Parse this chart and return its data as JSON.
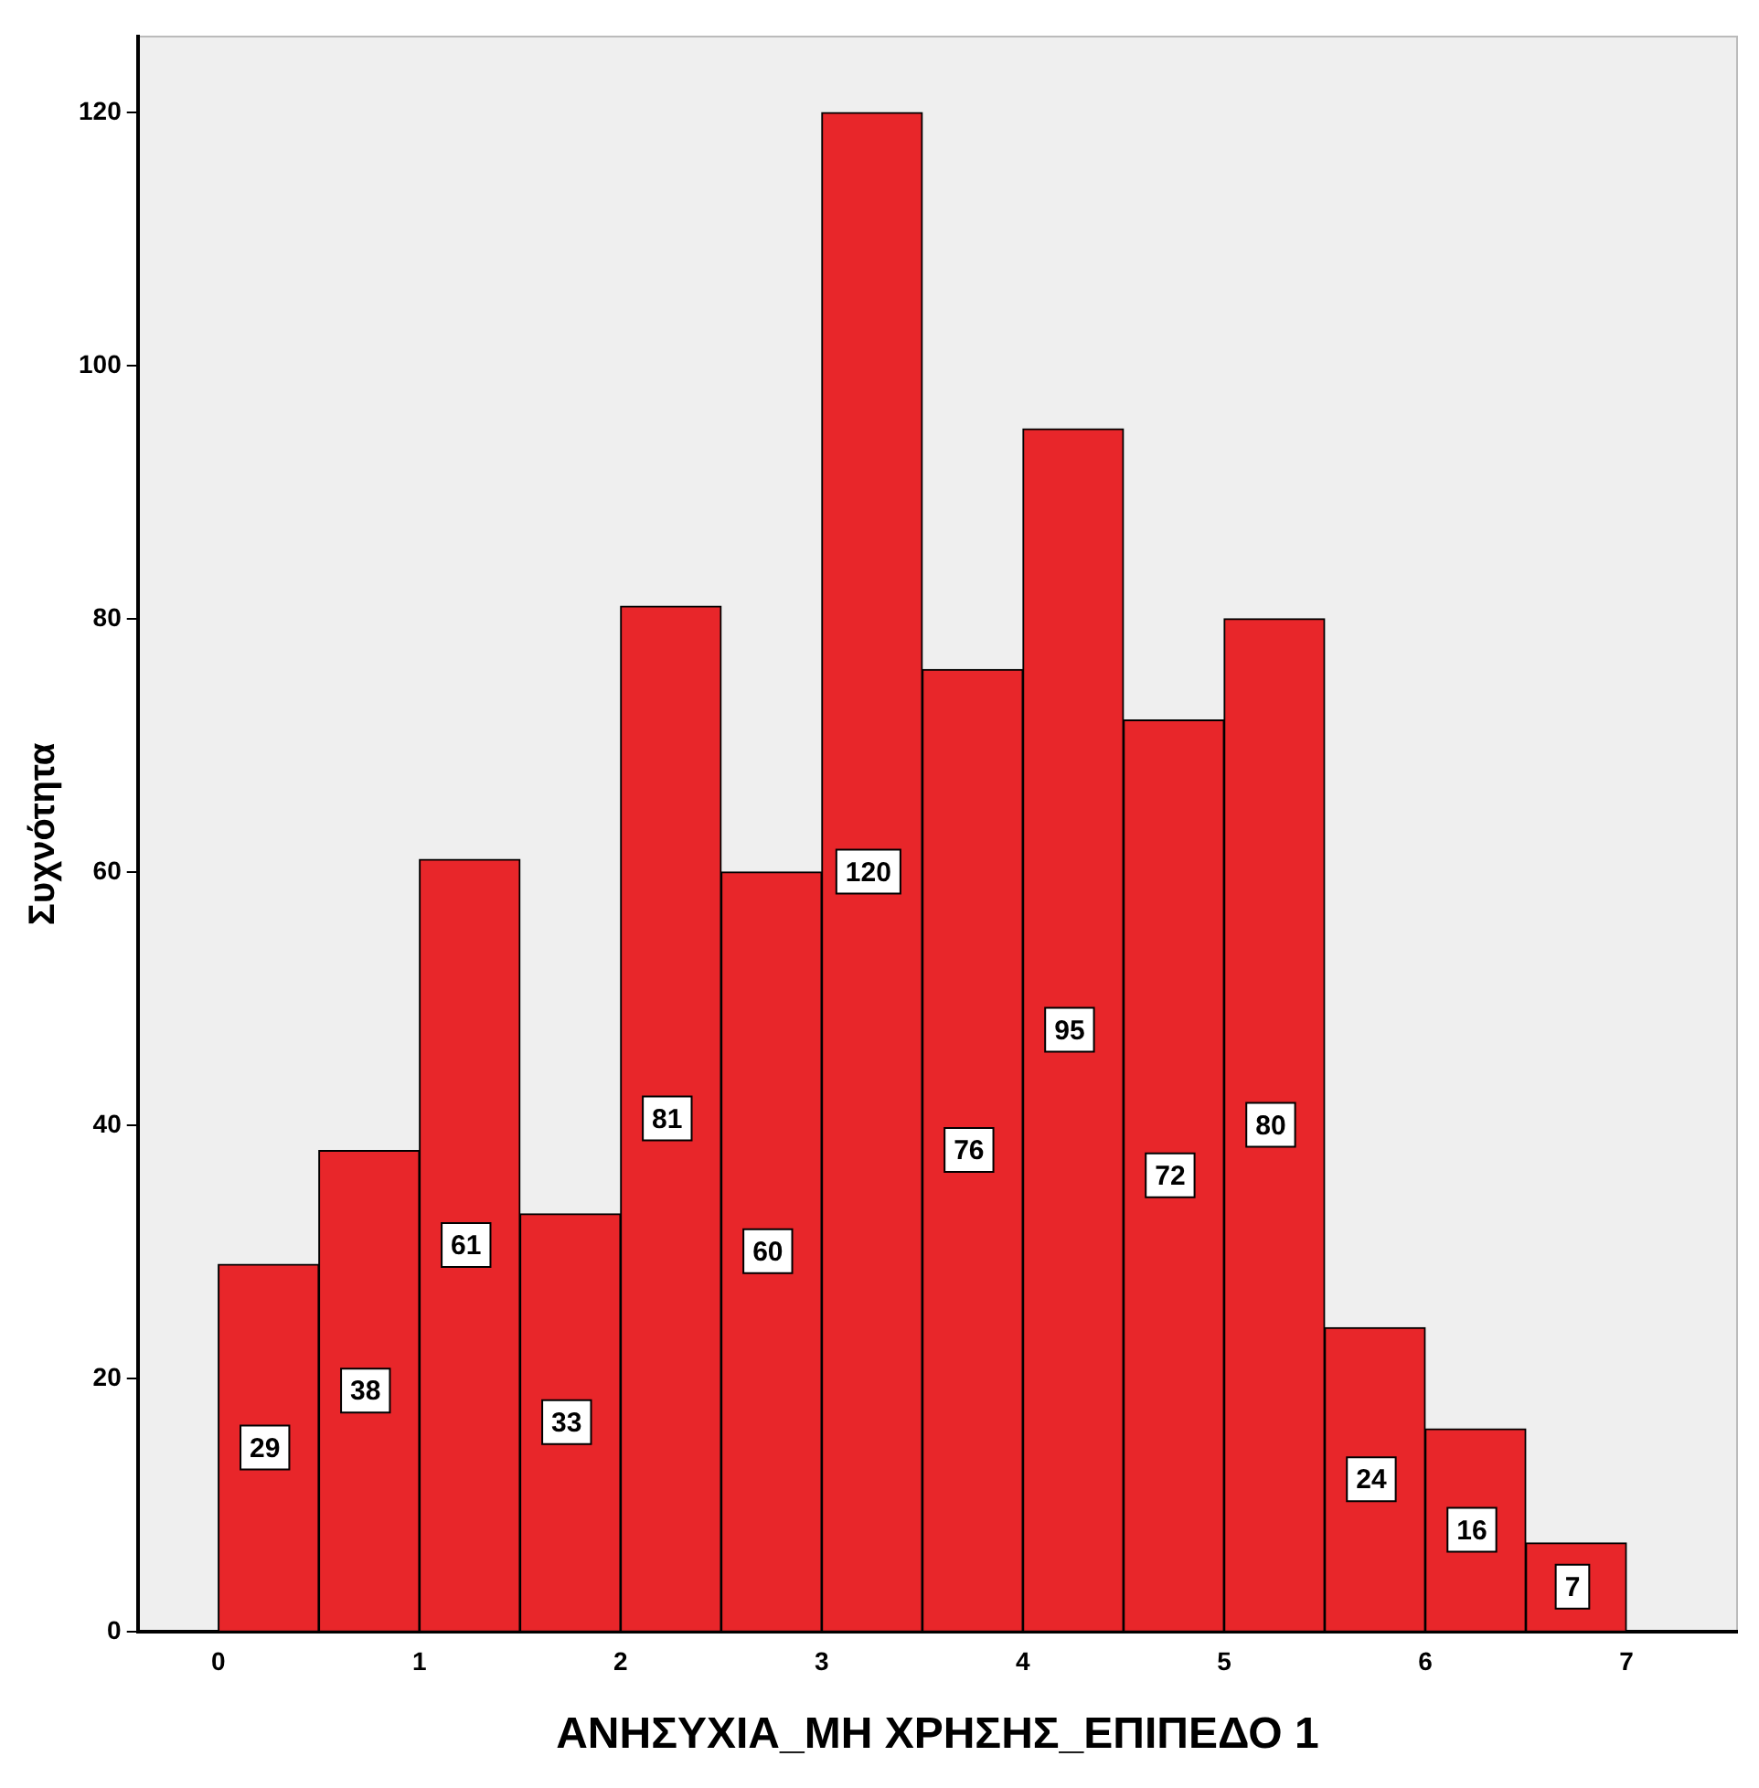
{
  "chart_data": {
    "type": "histogram",
    "xlabel": "ΑΝΗΣΥΧΙΑ_ΜΗ ΧΡΗΣΗΣ_ΕΠΙΠΕΔΟ 1",
    "ylabel": "Συχνότητα",
    "bins": [
      0,
      0.5,
      1,
      1.5,
      2,
      2.5,
      3,
      3.5,
      4,
      4.5,
      5,
      5.5,
      6,
      6.5,
      7
    ],
    "values": [
      29,
      38,
      61,
      33,
      81,
      60,
      120,
      76,
      95,
      72,
      80,
      24,
      16,
      7
    ],
    "color": "#e8262a",
    "xlim": [
      -0.4,
      7.55
    ],
    "xticks": [
      0,
      1,
      2,
      3,
      4,
      5,
      6,
      7
    ],
    "ylim": [
      0,
      126
    ],
    "yticks": [
      0,
      20,
      40,
      60,
      80,
      100,
      120
    ],
    "grid": false,
    "legend": false,
    "data_labels": true
  }
}
